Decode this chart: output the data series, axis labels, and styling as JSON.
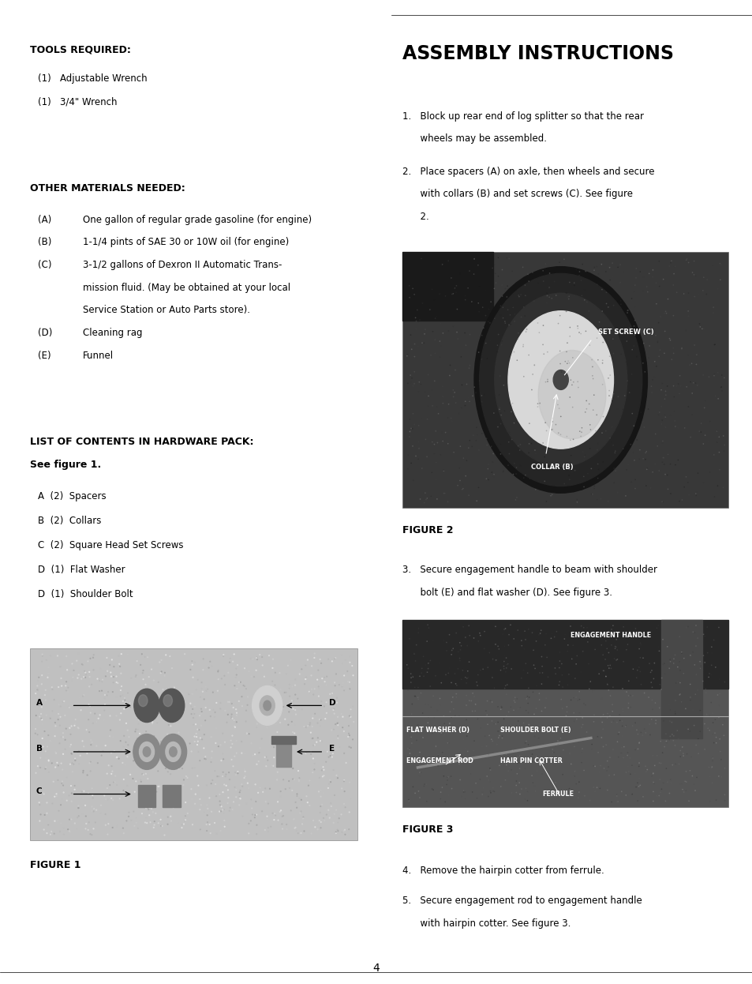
{
  "bg_color": "#ffffff",
  "page_width": 9.54,
  "page_height": 12.46,
  "tools_header": "TOOLS REQUIRED:",
  "tools_items": [
    "(1)   Adjustable Wrench",
    "(1)   3/4\" Wrench"
  ],
  "materials_header": "OTHER MATERIALS NEEDED:",
  "hardware_header": "LIST OF CONTENTS IN HARDWARE PACK:",
  "hardware_subheader": "See figure 1.",
  "hardware_items": [
    "A  (2)  Spacers",
    "B  (2)  Collars",
    "C  (2)  Square Head Set Screws",
    "D  (1)  Flat Washer",
    "D  (1)  Shoulder Bolt"
  ],
  "assembly_title": "ASSEMBLY INSTRUCTIONS",
  "figure2_caption": "FIGURE 2",
  "figure3_caption": "FIGURE 3",
  "figure1_caption": "FIGURE 1",
  "page_number": "4"
}
